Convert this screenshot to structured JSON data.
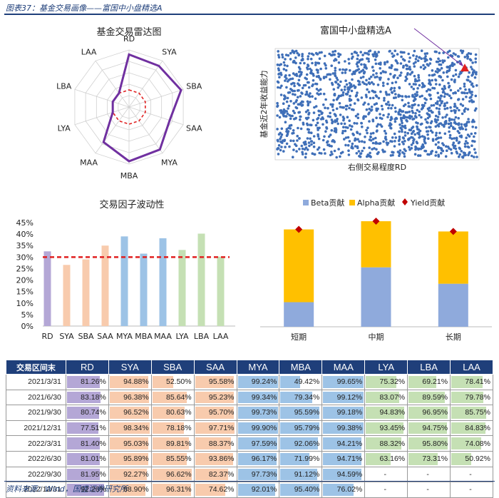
{
  "figure_title": "图表37：基金交易画像——富国中小盘精选A",
  "source": "资料来源：Wind，国盛证券研究所",
  "colors": {
    "navy": "#1f3f7a",
    "purple": "#7030a0",
    "red": "#e02020",
    "beta": "#8faadc",
    "alpha": "#ffc000",
    "yield": "#c00000",
    "bar_purple": "#b4a7d6",
    "bar_orange": "#f8cbad",
    "bar_blue": "#9dc3e6",
    "bar_green": "#c5e0b4"
  },
  "chart_data": [
    {
      "type": "radar",
      "title": "基金交易雷达图",
      "axes": [
        "RD",
        "SYA",
        "SBA",
        "SAA",
        "MYA",
        "MBA",
        "MAA",
        "LYA",
        "LBA",
        "LAA"
      ],
      "series": [
        {
          "values": [
            0.92,
            0.89,
            0.96,
            0.75,
            0.92,
            0.95,
            0.76,
            0.3,
            0.3,
            0.3
          ]
        }
      ],
      "reference": 0.3,
      "rlim": [
        0,
        1
      ]
    },
    {
      "type": "scatter",
      "title": "富国中小盘精选A",
      "xlabel": "右侧交易程度RD",
      "ylabel": "基金近2年收益能力",
      "highlight": {
        "x": 0.93,
        "y": 0.82
      }
    },
    {
      "type": "bar",
      "title": "交易因子波动性",
      "categories": [
        "RD",
        "SYA",
        "SBA",
        "SAA",
        "MYA",
        "MBA",
        "MAA",
        "LYA",
        "LBA",
        "LAA"
      ],
      "values": [
        32.5,
        26.6,
        29.0,
        35.0,
        39.0,
        31.5,
        38.2,
        33.1,
        40.2,
        30.2
      ],
      "reference": 30,
      "yticks": [
        "0%",
        "5%",
        "10%",
        "15%",
        "20%",
        "25%",
        "30%",
        "35%",
        "40%",
        "45%"
      ],
      "ylim": [
        0,
        45
      ]
    },
    {
      "type": "bar",
      "stacked": true,
      "legend": [
        "Beta贡献",
        "Alpha贡献",
        "Yield贡献"
      ],
      "categories": [
        "短期",
        "中期",
        "长期"
      ],
      "beta": [
        0.24,
        0.58,
        0.42
      ],
      "alpha": [
        0.71,
        0.45,
        0.51
      ],
      "yield": [
        0.95,
        1.03,
        0.93
      ],
      "ylim": [
        0,
        1.1
      ]
    }
  ],
  "table": {
    "headers": [
      "交易区间末",
      "RD",
      "SYA",
      "SBA",
      "SAA",
      "MYA",
      "MBA",
      "MAA",
      "LYA",
      "LBA",
      "LAA"
    ],
    "rows": [
      [
        "2021/3/31",
        "81.26%",
        "94.88%",
        "52.50%",
        "95.58%",
        "99.24%",
        "49.42%",
        "99.65%",
        "75.32%",
        "69.21%",
        "78.41%"
      ],
      [
        "2021/6/30",
        "83.18%",
        "96.38%",
        "85.64%",
        "95.23%",
        "99.34%",
        "79.34%",
        "99.12%",
        "83.07%",
        "89.59%",
        "79.78%"
      ],
      [
        "2021/9/30",
        "80.74%",
        "96.52%",
        "80.63%",
        "95.70%",
        "99.73%",
        "95.59%",
        "99.18%",
        "94.83%",
        "96.95%",
        "85.75%"
      ],
      [
        "2021/12/31",
        "77.51%",
        "98.34%",
        "78.18%",
        "97.71%",
        "99.90%",
        "95.79%",
        "99.38%",
        "93.45%",
        "94.75%",
        "84.83%"
      ],
      [
        "2022/3/31",
        "81.40%",
        "95.03%",
        "89.81%",
        "88.37%",
        "97.59%",
        "92.06%",
        "94.21%",
        "88.32%",
        "95.80%",
        "74.08%"
      ],
      [
        "2022/6/30",
        "81.01%",
        "95.89%",
        "85.55%",
        "93.86%",
        "96.17%",
        "71.99%",
        "94.71%",
        "63.16%",
        "73.31%",
        "50.92%"
      ],
      [
        "2022/9/30",
        "81.95%",
        "92.27%",
        "96.62%",
        "82.37%",
        "97.73%",
        "91.12%",
        "94.59%",
        "-",
        "-",
        "-"
      ],
      [
        "2022/12/31",
        "92.26%",
        "88.90%",
        "96.31%",
        "74.62%",
        "92.01%",
        "95.40%",
        "76.02%",
        "-",
        "-",
        "-"
      ]
    ]
  }
}
